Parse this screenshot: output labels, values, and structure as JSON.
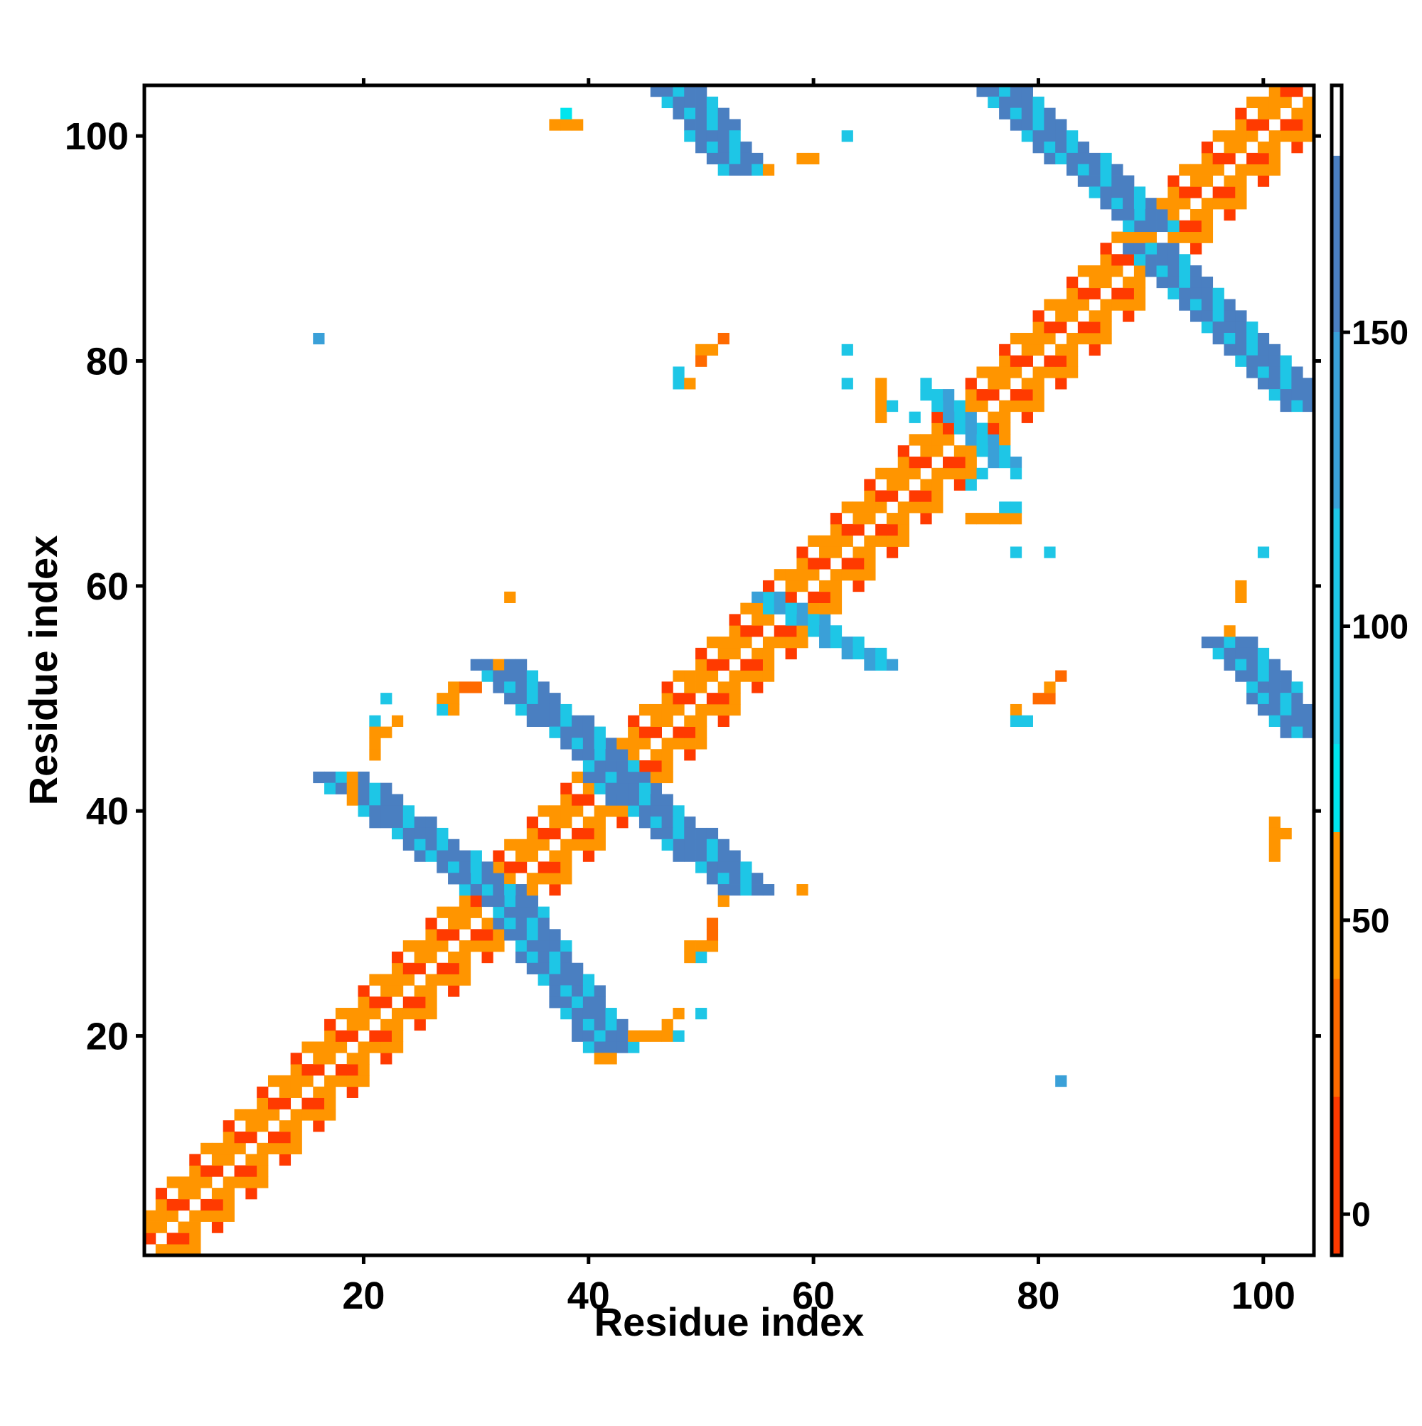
{
  "chart_data": {
    "type": "heatmap",
    "title": "",
    "xlabel": "Residue index",
    "ylabel": "Residue index",
    "xlim": [
      1,
      104
    ],
    "ylim": [
      1,
      104
    ],
    "x_ticks": [
      20,
      40,
      60,
      80,
      100
    ],
    "y_ticks": [
      20,
      40,
      60,
      80,
      100
    ],
    "grid": false,
    "colorbar": {
      "ticks": [
        0,
        50,
        100,
        150
      ],
      "range": [
        -7,
        192
      ],
      "color_stops": [
        {
          "value": -7,
          "color": "#e31a1c"
        },
        {
          "value": 20,
          "color": "#ff3a00"
        },
        {
          "value": 40,
          "color": "#ff6a00"
        },
        {
          "value": 65,
          "color": "#ff9500"
        },
        {
          "value": 80,
          "color": "#00e5ee"
        },
        {
          "value": 120,
          "color": "#1ec6e6"
        },
        {
          "value": 150,
          "color": "#3aa0d8"
        },
        {
          "value": 180,
          "color": "#4a7fc1"
        },
        {
          "value": 192,
          "color": "#ffffff"
        }
      ]
    },
    "bands": [
      {
        "region": "main-diagonal",
        "x_start": 1,
        "x_end": 104,
        "y_start": 1,
        "y_end": 104,
        "half_width": 4,
        "pattern": "hbond",
        "values": [
          20,
          45,
          55
        ]
      },
      {
        "region": "beta-strand-cross-1",
        "x_start": 32,
        "x_end": 54,
        "y_start": 53,
        "y_end": 33,
        "half_width": 2,
        "values": [
          120,
          160,
          175
        ]
      },
      {
        "region": "beta-strand-cross-2",
        "x_start": 18,
        "x_end": 33,
        "y_start": 43,
        "y_end": 32,
        "half_width": 2,
        "values": [
          120,
          160,
          175
        ]
      },
      {
        "region": "beta-strand-cross-3",
        "x_start": 33,
        "x_end": 42,
        "y_start": 32,
        "y_end": 19,
        "half_width": 2,
        "values": [
          120,
          160,
          175
        ]
      },
      {
        "region": "beta-strand-cross-4",
        "x_start": 42,
        "x_end": 54,
        "y_start": 43,
        "y_end": 33,
        "half_width": 2,
        "values": [
          120,
          160,
          175
        ]
      },
      {
        "region": "hairpin-top-1",
        "x_start": 48,
        "x_end": 54,
        "y_start": 104,
        "y_end": 97,
        "half_width": 2,
        "values": [
          120,
          160,
          175
        ]
      },
      {
        "region": "hairpin-top-2",
        "x_start": 77,
        "x_end": 90,
        "y_start": 104,
        "y_end": 92,
        "half_width": 2,
        "values": [
          120,
          160,
          175
        ]
      },
      {
        "region": "hairpin-right-1",
        "x_start": 90,
        "x_end": 104,
        "y_start": 90,
        "y_end": 76,
        "half_width": 2,
        "values": [
          120,
          160,
          175
        ]
      },
      {
        "region": "hairpin-right-2",
        "x_start": 97,
        "x_end": 104,
        "y_start": 55,
        "y_end": 47,
        "half_width": 2,
        "values": [
          120,
          160,
          175
        ]
      },
      {
        "region": "helix-cluster-1",
        "x_start": 56,
        "x_end": 66,
        "y_start": 59,
        "y_end": 53,
        "half_width": 1,
        "values": [
          100,
          130
        ]
      },
      {
        "region": "helix-cluster-2",
        "x_start": 71,
        "x_end": 77,
        "y_start": 77,
        "y_end": 71,
        "half_width": 1,
        "values": [
          100,
          130
        ]
      }
    ],
    "scattered_cells": [
      {
        "x": 16,
        "y": 82,
        "value": 150
      },
      {
        "x": 63,
        "y": 100,
        "value": 100
      },
      {
        "x": 63,
        "y": 81,
        "value": 110
      },
      {
        "x": 63,
        "y": 78,
        "value": 100
      },
      {
        "x": 48,
        "y": 79,
        "value": 100
      },
      {
        "x": 48,
        "y": 78,
        "value": 115
      },
      {
        "x": 49,
        "y": 78,
        "value": 60
      },
      {
        "x": 50,
        "y": 81,
        "value": 45
      },
      {
        "x": 51,
        "y": 81,
        "value": 45
      },
      {
        "x": 52,
        "y": 82,
        "value": 40
      },
      {
        "x": 50,
        "y": 80,
        "value": 30
      },
      {
        "x": 59,
        "y": 98,
        "value": 50
      },
      {
        "x": 60,
        "y": 98,
        "value": 65
      },
      {
        "x": 37,
        "y": 101,
        "value": 50
      },
      {
        "x": 38,
        "y": 101,
        "value": 65
      },
      {
        "x": 39,
        "y": 101,
        "value": 60
      },
      {
        "x": 38,
        "y": 102,
        "value": 70
      },
      {
        "x": 56,
        "y": 97,
        "value": 65
      },
      {
        "x": 55,
        "y": 97,
        "value": 100
      },
      {
        "x": 22,
        "y": 50,
        "value": 100
      },
      {
        "x": 21,
        "y": 48,
        "value": 100
      },
      {
        "x": 21,
        "y": 47,
        "value": 60
      },
      {
        "x": 22,
        "y": 47,
        "value": 45
      },
      {
        "x": 23,
        "y": 48,
        "value": 45
      },
      {
        "x": 21,
        "y": 46,
        "value": 50
      },
      {
        "x": 21,
        "y": 45,
        "value": 50
      },
      {
        "x": 19,
        "y": 43,
        "value": 50
      },
      {
        "x": 19,
        "y": 42,
        "value": 45
      },
      {
        "x": 19,
        "y": 41,
        "value": 45
      },
      {
        "x": 28,
        "y": 51,
        "value": 65
      },
      {
        "x": 29,
        "y": 51,
        "value": 30
      },
      {
        "x": 30,
        "y": 51,
        "value": 30
      },
      {
        "x": 28,
        "y": 50,
        "value": 65
      },
      {
        "x": 27,
        "y": 50,
        "value": 60
      },
      {
        "x": 27,
        "y": 49,
        "value": 100
      },
      {
        "x": 28,
        "y": 49,
        "value": 65
      },
      {
        "x": 32,
        "y": 53,
        "value": 50
      },
      {
        "x": 33,
        "y": 59,
        "value": 50
      },
      {
        "x": 49,
        "y": 28,
        "value": 60
      },
      {
        "x": 50,
        "y": 28,
        "value": 65
      },
      {
        "x": 51,
        "y": 28,
        "value": 65
      },
      {
        "x": 50,
        "y": 27,
        "value": 100
      },
      {
        "x": 49,
        "y": 27,
        "value": 60
      },
      {
        "x": 51,
        "y": 29,
        "value": 30
      },
      {
        "x": 51,
        "y": 30,
        "value": 40
      },
      {
        "x": 52,
        "y": 32,
        "value": 50
      },
      {
        "x": 59,
        "y": 33,
        "value": 55
      },
      {
        "x": 44,
        "y": 20,
        "value": 45
      },
      {
        "x": 45,
        "y": 20,
        "value": 45
      },
      {
        "x": 46,
        "y": 20,
        "value": 50
      },
      {
        "x": 47,
        "y": 20,
        "value": 60
      },
      {
        "x": 48,
        "y": 20,
        "value": 100
      },
      {
        "x": 48,
        "y": 22,
        "value": 60
      },
      {
        "x": 47,
        "y": 21,
        "value": 50
      },
      {
        "x": 50,
        "y": 22,
        "value": 100
      },
      {
        "x": 41,
        "y": 18,
        "value": 45
      },
      {
        "x": 42,
        "y": 18,
        "value": 45
      },
      {
        "x": 82,
        "y": 16,
        "value": 150
      },
      {
        "x": 78,
        "y": 49,
        "value": 65
      },
      {
        "x": 78,
        "y": 48,
        "value": 100
      },
      {
        "x": 79,
        "y": 48,
        "value": 100
      },
      {
        "x": 80,
        "y": 50,
        "value": 30
      },
      {
        "x": 81,
        "y": 50,
        "value": 30
      },
      {
        "x": 81,
        "y": 51,
        "value": 45
      },
      {
        "x": 82,
        "y": 52,
        "value": 40
      },
      {
        "x": 78,
        "y": 63,
        "value": 100
      },
      {
        "x": 81,
        "y": 63,
        "value": 110
      },
      {
        "x": 100,
        "y": 63,
        "value": 100
      },
      {
        "x": 98,
        "y": 59,
        "value": 45
      },
      {
        "x": 98,
        "y": 60,
        "value": 60
      },
      {
        "x": 97,
        "y": 56,
        "value": 65
      },
      {
        "x": 101,
        "y": 39,
        "value": 60
      },
      {
        "x": 101,
        "y": 38,
        "value": 65
      },
      {
        "x": 102,
        "y": 38,
        "value": 50
      },
      {
        "x": 101,
        "y": 37,
        "value": 45
      },
      {
        "x": 101,
        "y": 36,
        "value": 50
      },
      {
        "x": 74,
        "y": 66,
        "value": 45
      },
      {
        "x": 75,
        "y": 66,
        "value": 45
      },
      {
        "x": 76,
        "y": 66,
        "value": 50
      },
      {
        "x": 77,
        "y": 66,
        "value": 55
      },
      {
        "x": 78,
        "y": 66,
        "value": 45
      },
      {
        "x": 77,
        "y": 67,
        "value": 100
      },
      {
        "x": 78,
        "y": 67,
        "value": 100
      },
      {
        "x": 74,
        "y": 69,
        "value": 100
      },
      {
        "x": 75,
        "y": 70,
        "value": 100
      },
      {
        "x": 78,
        "y": 70,
        "value": 100
      },
      {
        "x": 66,
        "y": 78,
        "value": 50
      },
      {
        "x": 66,
        "y": 77,
        "value": 60
      },
      {
        "x": 66,
        "y": 76,
        "value": 55
      },
      {
        "x": 66,
        "y": 75,
        "value": 60
      },
      {
        "x": 67,
        "y": 76,
        "value": 100
      },
      {
        "x": 69,
        "y": 75,
        "value": 100
      },
      {
        "x": 70,
        "y": 78,
        "value": 110
      },
      {
        "x": 70,
        "y": 77,
        "value": 100
      }
    ]
  }
}
